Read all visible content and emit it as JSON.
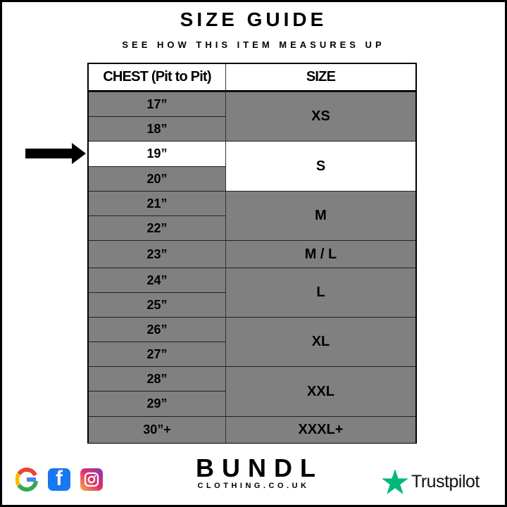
{
  "title": "SIZE GUIDE",
  "subtitle": "SEE HOW THIS ITEM MEASURES UP",
  "table": {
    "headers": [
      "CHEST (Pit to Pit)",
      "SIZE"
    ],
    "chest": [
      {
        "label": "17”",
        "highlighted": false
      },
      {
        "label": "18”",
        "highlighted": false
      },
      {
        "label": "19”",
        "highlighted": true
      },
      {
        "label": "20”",
        "highlighted": false
      },
      {
        "label": "21”",
        "highlighted": false
      },
      {
        "label": "22”",
        "highlighted": false
      },
      {
        "label": "23”",
        "highlighted": false
      },
      {
        "label": "24”",
        "highlighted": false
      },
      {
        "label": "25”",
        "highlighted": false
      },
      {
        "label": "26”",
        "highlighted": false
      },
      {
        "label": "27”",
        "highlighted": false
      },
      {
        "label": "28”",
        "highlighted": false
      },
      {
        "label": "29”",
        "highlighted": false
      },
      {
        "label": "30”+",
        "highlighted": false
      }
    ],
    "sizes": [
      {
        "label": "XS",
        "rows": 2,
        "highlighted": false
      },
      {
        "label": "S",
        "rows": 2,
        "highlighted": true
      },
      {
        "label": "M",
        "rows": 2,
        "highlighted": false
      },
      {
        "label": "M / L",
        "rows": 1,
        "highlighted": false
      },
      {
        "label": "L",
        "rows": 2,
        "highlighted": false
      },
      {
        "label": "XL",
        "rows": 2,
        "highlighted": false
      },
      {
        "label": "XXL",
        "rows": 2,
        "highlighted": false
      },
      {
        "label": "XXXL+",
        "rows": 1,
        "highlighted": false
      }
    ]
  },
  "colors": {
    "cell_gray": "#808080",
    "highlight": "#ffffff",
    "trustpilot_green": "#00b67a",
    "facebook_blue": "#1877f2"
  },
  "footer": {
    "social_icons": [
      "google-icon",
      "facebook-icon",
      "instagram-icon"
    ],
    "brand_name": "BUNDL",
    "brand_sub": "CLOTHING.CO.UK",
    "trustpilot": "Trustpilot"
  }
}
